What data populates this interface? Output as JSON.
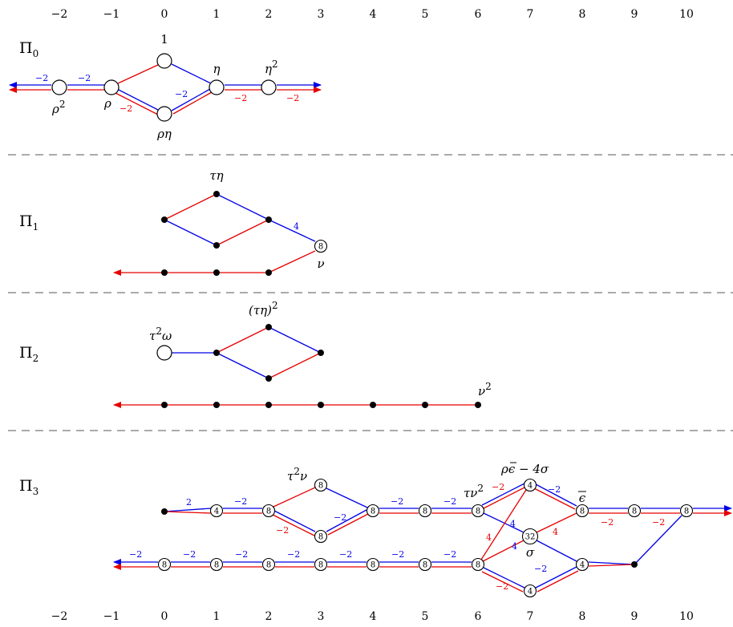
{
  "axis": {
    "ticks_top": [
      "−2",
      "−1",
      "0",
      "1",
      "2",
      "3",
      "4",
      "5",
      "6",
      "7",
      "8",
      "9",
      "10"
    ],
    "ticks_bottom": [
      "−2",
      "−1",
      "0",
      "1",
      "2",
      "3",
      "4",
      "5",
      "6",
      "7",
      "8",
      "9",
      "10"
    ]
  },
  "colors": {
    "blue": "#0000e6",
    "red": "#e60000",
    "divider": "#777777"
  },
  "sections": [
    {
      "letter": "Π",
      "index": "0"
    },
    {
      "letter": "Π",
      "index": "1"
    },
    {
      "letter": "Π",
      "index": "2"
    },
    {
      "letter": "Π",
      "index": "3"
    }
  ],
  "generators": {
    "pi0_one": "1",
    "pi0_eta": "η",
    "pi0_eta2_base": "η",
    "pi0_eta2_exp": "2",
    "pi0_rho": "ρ",
    "pi0_rho2_base": "ρ",
    "pi0_rho2_exp": "2",
    "pi0_rhoeta": "ρη",
    "pi1_taueta": "τη",
    "pi1_nu": "ν",
    "pi2_tau2omega_a": "τ",
    "pi2_tau2omega_exp": "2",
    "pi2_tau2omega_b": "ω",
    "pi2_taueta2_base": "(τη)",
    "pi2_taueta2_exp": "2",
    "pi2_nu2_base": "ν",
    "pi2_nu2_exp": "2",
    "pi3_tau2nu_a": "τ",
    "pi3_tau2nu_exp": "2",
    "pi3_tau2nu_b": "ν",
    "pi3_taunu2_base": "τν",
    "pi3_taunu2_exp": "2",
    "pi3_rhoeps_a": "ρ",
    "pi3_rhoeps_eps": "ϵ",
    "pi3_rhoeps_b": " − 4σ",
    "pi3_epsbar": "ϵ",
    "pi3_sigma": "σ"
  },
  "node_labels": {
    "eight": "8",
    "four": "4",
    "thirtytwo": "32"
  },
  "edge_labels": {
    "m2": "−2",
    "two": "2",
    "four": "4"
  }
}
